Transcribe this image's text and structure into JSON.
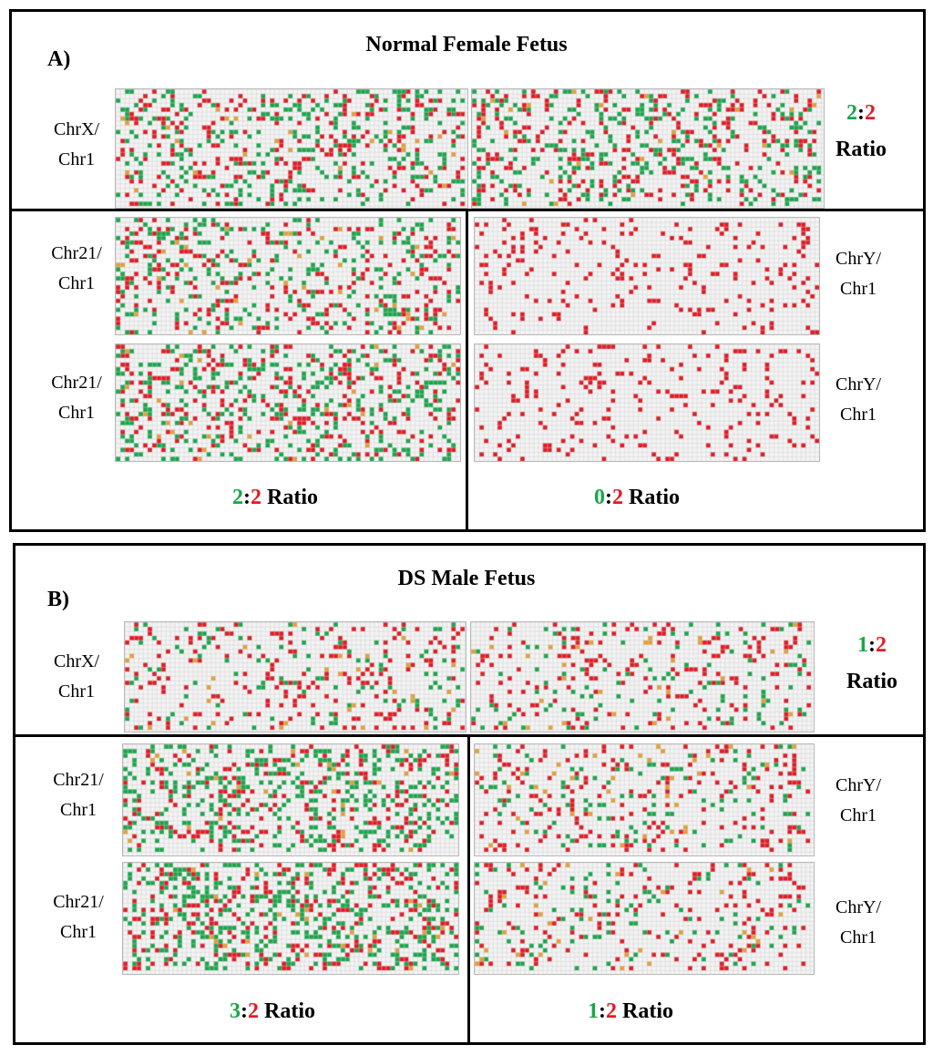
{
  "colors": {
    "positive_a": "#1aa64a",
    "positive_b": "#e31b23",
    "faint": "#e3a03a",
    "empty": "#f4f4f4",
    "gridline": "#cfcfcf"
  },
  "panel_a": {
    "letter": "A)",
    "title": "Normal Female Fetus",
    "x_label": "ChrX/\nChr1",
    "x_ratio": {
      "g": "2",
      "sep": ":",
      "r": "2",
      "word": "Ratio"
    },
    "chr21_labels": [
      "Chr21/\nChr1",
      "Chr21/\nChr1"
    ],
    "chr21_ratio": {
      "g": "2",
      "sep": ":",
      "r": "2",
      "word": "Ratio"
    },
    "chry_labels": [
      "ChrY/\nChr1",
      "ChrY/\nChr1"
    ],
    "chry_ratio": {
      "g": "0",
      "sep": ":",
      "r": "2",
      "word": "Ratio"
    }
  },
  "panel_b": {
    "letter": "B)",
    "title": "DS Male Fetus",
    "x_label": "ChrX/\nChr1",
    "x_ratio": {
      "g": "1",
      "sep": ":",
      "r": "2",
      "word": "Ratio"
    },
    "chr21_labels": [
      "Chr21/\nChr1",
      "Chr21/\nChr1"
    ],
    "chr21_ratio": {
      "g": "3",
      "sep": ":",
      "r": "2",
      "word": "Ratio"
    },
    "chry_labels": [
      "ChrY/\nChr1",
      "ChrY/\nChr1"
    ],
    "chry_ratio": {
      "g": "1",
      "sep": ":",
      "r": "2",
      "word": "Ratio"
    }
  },
  "plates": {
    "a_x_left": {
      "green": 0.14,
      "red": 0.12,
      "orange": 0.015
    },
    "a_x_right": {
      "green": 0.14,
      "red": 0.12,
      "orange": 0.015
    },
    "a_21_top": {
      "green": 0.14,
      "red": 0.12,
      "orange": 0.015
    },
    "a_21_bot": {
      "green": 0.14,
      "red": 0.12,
      "orange": 0.015
    },
    "a_y_top": {
      "green": 0.0,
      "red": 0.11,
      "orange": 0.0
    },
    "a_y_bot": {
      "green": 0.0,
      "red": 0.11,
      "orange": 0.0
    },
    "b_x_left": {
      "green": 0.06,
      "red": 0.11,
      "orange": 0.015
    },
    "b_x_right": {
      "green": 0.06,
      "red": 0.11,
      "orange": 0.015
    },
    "b_21_top": {
      "green": 0.21,
      "red": 0.13,
      "orange": 0.015
    },
    "b_21_bot": {
      "green": 0.21,
      "red": 0.13,
      "orange": 0.015
    },
    "b_y_top": {
      "green": 0.06,
      "red": 0.11,
      "orange": 0.02
    },
    "b_y_bot": {
      "green": 0.06,
      "red": 0.11,
      "orange": 0.02
    }
  }
}
